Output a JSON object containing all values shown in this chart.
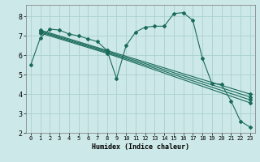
{
  "xlabel": "Humidex (Indice chaleur)",
  "ylabel": "",
  "bg_color": "#cde8e8",
  "line_color": "#1a6b5a",
  "grid_color": "#aacfcf",
  "xlim": [
    -0.5,
    23.5
  ],
  "ylim": [
    2.0,
    8.6
  ],
  "yticks": [
    2,
    3,
    4,
    5,
    6,
    7,
    8
  ],
  "xticks": [
    0,
    1,
    2,
    3,
    4,
    5,
    6,
    7,
    8,
    9,
    10,
    11,
    12,
    13,
    14,
    15,
    16,
    17,
    18,
    19,
    20,
    21,
    22,
    23
  ],
  "lines": [
    {
      "x": [
        0,
        1,
        2,
        3,
        4,
        5,
        6,
        7,
        8,
        9,
        10,
        11,
        12,
        13,
        14,
        15,
        16,
        17,
        18,
        19,
        20,
        21,
        22,
        23
      ],
      "y": [
        5.5,
        6.9,
        7.35,
        7.3,
        7.1,
        7.0,
        6.85,
        6.7,
        6.25,
        4.8,
        6.5,
        7.2,
        7.45,
        7.5,
        7.5,
        8.15,
        8.2,
        7.8,
        5.85,
        4.55,
        4.5,
        3.65,
        2.6,
        2.3
      ]
    },
    {
      "x": [
        1,
        8,
        23
      ],
      "y": [
        7.3,
        6.25,
        4.0
      ]
    },
    {
      "x": [
        1,
        8,
        23
      ],
      "y": [
        7.25,
        6.2,
        3.85
      ]
    },
    {
      "x": [
        1,
        8,
        23
      ],
      "y": [
        7.2,
        6.15,
        3.7
      ]
    },
    {
      "x": [
        1,
        8,
        23
      ],
      "y": [
        7.15,
        6.1,
        3.55
      ]
    }
  ],
  "marker": "D",
  "markersize": 2.0,
  "linewidth": 0.8
}
